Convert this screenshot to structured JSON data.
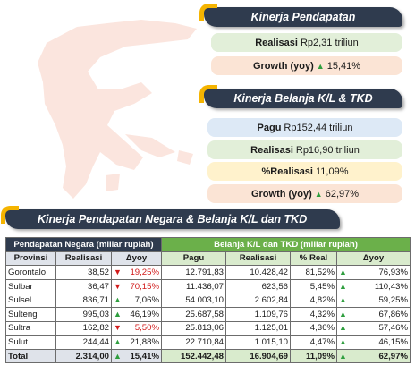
{
  "kinerja_pendapatan": {
    "title": "Kinerja Pendapatan",
    "realisasi_label": "Realisasi",
    "realisasi_value": "Rp2,31 triliun",
    "growth_label": "Growth (yoy)",
    "growth_value": "15,41%"
  },
  "kinerja_belanja": {
    "title": "Kinerja Belanja K/L & TKD",
    "pagu_label": "Pagu",
    "pagu_value": "Rp152,44 triliun",
    "realisasi_label": "Realisasi",
    "realisasi_value": "Rp16,90 triliun",
    "pct_realisasi_label": "%Realisasi",
    "pct_realisasi_value": "11,09%",
    "growth_label": "Growth (yoy)",
    "growth_value": "62,97%"
  },
  "table_section": {
    "title": "Kinerja Pendapatan Negara & Belanja K/L dan TKD",
    "group_left": "Pendapatan Negara (miliar rupiah)",
    "group_right": "Belanja K/L dan TKD (miliar rupiah)",
    "columns": [
      "Provinsi",
      "Realisasi",
      "Δyoy",
      "Pagu",
      "Realisasi",
      "% Real",
      "Δyoy"
    ],
    "rows": [
      {
        "provinsi": "Gorontalo",
        "realisasi": "38,52",
        "yoy": "19,25%",
        "pagu": "12.791,83",
        "realisasi2": "10.428,42",
        "real": "81,52%",
        "yoy2": "76,93%"
      },
      {
        "provinsi": "Sulbar",
        "realisasi": "36,47",
        "yoy": "70,15%",
        "pagu": "11.436,07",
        "realisasi2": "623,56",
        "real": "5,45%",
        "yoy2": "110,43%"
      },
      {
        "provinsi": "Sulsel",
        "realisasi": "836,71",
        "yoy": "7,06%",
        "pagu": "54.003,10",
        "realisasi2": "2.602,84",
        "real": "4,82%",
        "yoy2": "59,25%"
      },
      {
        "provinsi": "Sulteng",
        "realisasi": "995,03",
        "yoy": "46,19%",
        "pagu": "25.687,58",
        "realisasi2": "1.109,76",
        "real": "4,32%",
        "yoy2": "67,86%"
      },
      {
        "provinsi": "Sultra",
        "realisasi": "162,82",
        "yoy": "5,50%",
        "pagu": "25.813,06",
        "realisasi2": "1.125,01",
        "real": "4,36%",
        "yoy2": "57,46%"
      },
      {
        "provinsi": "Sulut",
        "realisasi": "244,44",
        "yoy": "21,88%",
        "pagu": "22.710,84",
        "realisasi2": "1.015,10",
        "real": "4,47%",
        "yoy2": "46,15%"
      }
    ],
    "total": {
      "provinsi": "Total",
      "realisasi": "2.314,00",
      "yoy": "15,41%",
      "pagu": "152.442,48",
      "realisasi2": "16.904,69",
      "real": "11,09%",
      "yoy2": "62,97%"
    }
  },
  "colors": {
    "navy": "#2f3b4e",
    "green_header": "#6bb04a",
    "accent": "#f5b400",
    "up": "#2e9e3e",
    "down": "#d11a1a"
  }
}
